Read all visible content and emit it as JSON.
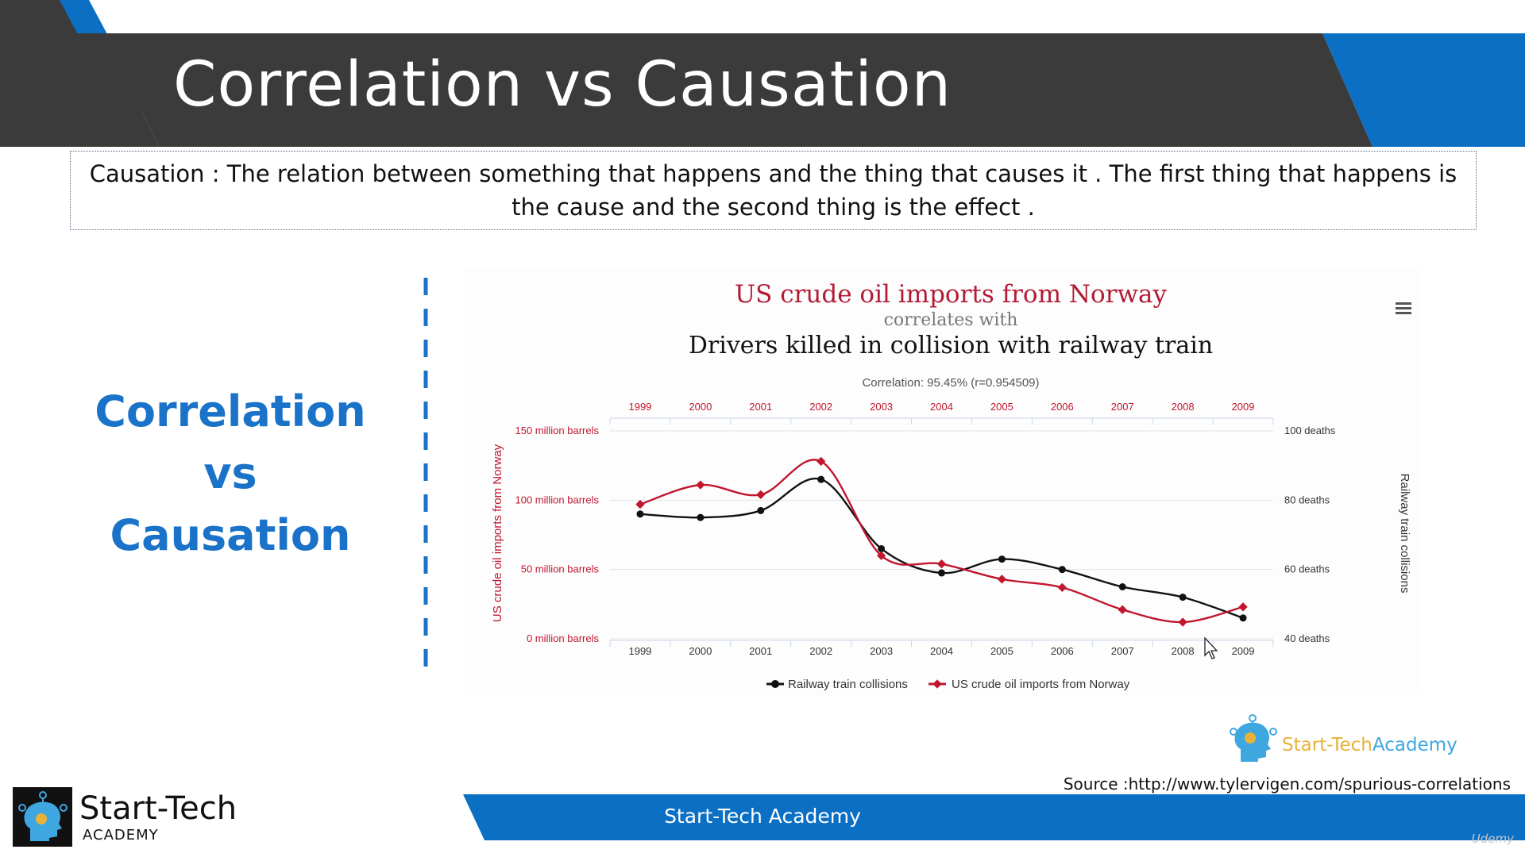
{
  "slide": {
    "title": "Correlation vs Causation",
    "definition": "Causation : The relation between something that happens and the thing that causes it . The first thing that happens is the cause and the second thing is the effect .",
    "side_title": [
      "Correlation",
      "vs",
      "Causation"
    ],
    "footer": "Start-Tech Academy",
    "logo_name": "Start-Tech",
    "logo_sub": "ACADEMY",
    "watermark_part1": "Start-Tech",
    "watermark_part2": "Academy",
    "source": "Source :http://www.tylervigen.com/spurious-correlations",
    "udemy": "Udemy",
    "colors": {
      "banner_dark": "#3b3b3b",
      "banner_blue": "#0b6fc4",
      "title_blue": "#1a73c8",
      "series_red": "#c0162e",
      "series_black": "#111111"
    },
    "icons": [
      "menu-icon",
      "logo-head-icon",
      "watermark-head-icon",
      "mouse-cursor-icon"
    ]
  },
  "chart_data": {
    "type": "line",
    "title": "US crude oil imports from Norway",
    "subtitle": "correlates with",
    "title2": "Drivers killed in collision with railway train",
    "correlation": "Correlation: 95.45% (r=0.954509)",
    "x": [
      1999,
      2000,
      2001,
      2002,
      2003,
      2004,
      2005,
      2006,
      2007,
      2008,
      2009
    ],
    "x_tick_labels": [
      "1999",
      "2000",
      "2001",
      "2002",
      "2003",
      "2004",
      "2005",
      "2006",
      "2007",
      "2008",
      "2009"
    ],
    "left_axis": {
      "label": "US crude oil imports from Norway",
      "ticks": [
        0,
        50,
        100,
        150
      ],
      "tick_labels": [
        "0 million barrels",
        "50 million barrels",
        "100 million barrels",
        "150 million barrels"
      ],
      "range": [
        0,
        150
      ]
    },
    "right_axis": {
      "label": "Railway train collisions",
      "ticks": [
        40,
        60,
        80,
        100
      ],
      "tick_labels": [
        "40 deaths",
        "60 deaths",
        "80 deaths",
        "100 deaths"
      ],
      "range": [
        40,
        100
      ]
    },
    "series": [
      {
        "name": "Railway train collisions",
        "axis": "right",
        "color": "#111111",
        "marker": "circle",
        "values": [
          76,
          75,
          77,
          86,
          66,
          59,
          63,
          60,
          55,
          52,
          46
        ]
      },
      {
        "name": "US crude oil imports from Norway",
        "axis": "left",
        "color": "#c0162e",
        "marker": "diamond",
        "values": [
          97,
          111,
          104,
          128,
          60,
          54,
          43,
          37,
          21,
          12,
          23
        ]
      }
    ],
    "legend": "bottom-center",
    "grid": true
  }
}
